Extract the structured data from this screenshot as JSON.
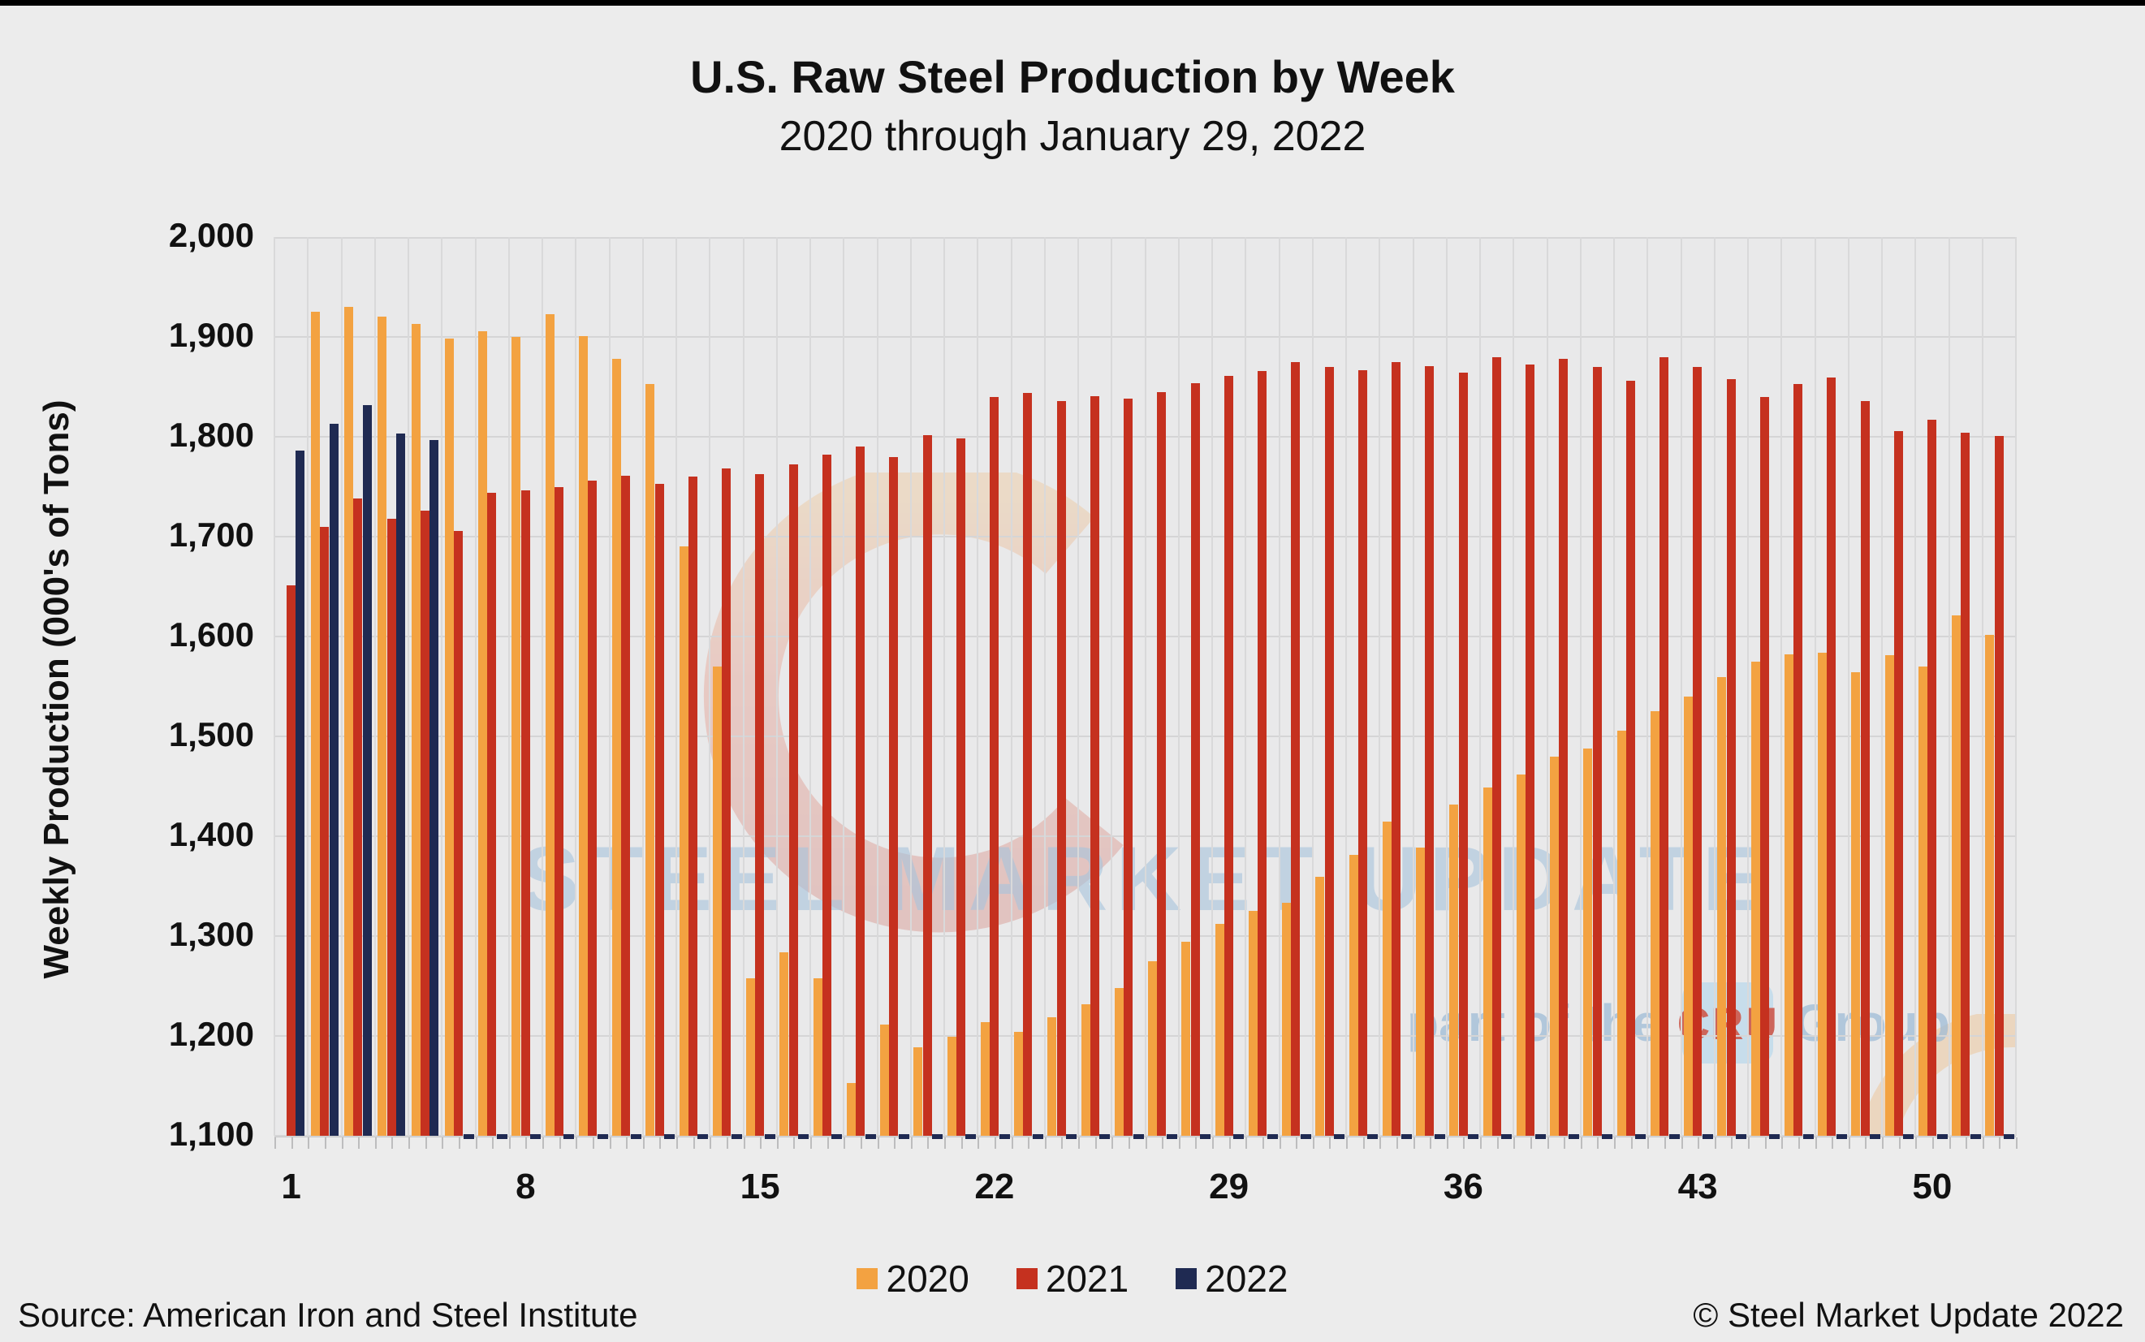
{
  "header": {
    "title": "U.S. Raw Steel Production by Week",
    "subtitle": "2020 through January 29, 2022"
  },
  "footer": {
    "source": "Source: American Iron and Steel Institute",
    "copyright": "© Steel Market Update 2022"
  },
  "watermark": {
    "main": "STEEL MARKET UPDATE",
    "part_of": "part of the",
    "cru": "CRU",
    "group": "Group"
  },
  "chart_data": {
    "type": "bar",
    "title": "U.S. Raw Steel Production by Week",
    "subtitle": "2020 through January 29, 2022",
    "xlabel": "",
    "ylabel": "Weekly Production (000's of Tons)",
    "x": [
      1,
      2,
      3,
      4,
      5,
      6,
      7,
      8,
      9,
      10,
      11,
      12,
      13,
      14,
      15,
      16,
      17,
      18,
      19,
      20,
      21,
      22,
      23,
      24,
      25,
      26,
      27,
      28,
      29,
      30,
      31,
      32,
      33,
      34,
      35,
      36,
      37,
      38,
      39,
      40,
      41,
      42,
      43,
      44,
      45,
      46,
      47,
      48,
      49,
      50,
      51,
      52
    ],
    "xticks": [
      1,
      8,
      15,
      22,
      29,
      36,
      43,
      50
    ],
    "ylim": [
      1100,
      2000
    ],
    "ytick_step": 100,
    "grid": true,
    "legend_position": "bottom",
    "series": [
      {
        "name": "2020",
        "color": "#F3A241",
        "values": [
          null,
          1925,
          1930,
          1920,
          1913,
          1898,
          1906,
          1900,
          1923,
          1901,
          1878,
          1853,
          1690,
          1570,
          1258,
          1284,
          1258,
          1153,
          1211,
          1189,
          1199,
          1214,
          1204,
          1219,
          1232,
          1248,
          1275,
          1294,
          1312,
          1325,
          1333,
          1359,
          1381,
          1415,
          1389,
          1432,
          1449,
          1462,
          1480,
          1488,
          1506,
          1525,
          1540,
          1559,
          1575,
          1582,
          1584,
          1564,
          1581,
          1570,
          1621,
          1602
        ]
      },
      {
        "name": "2021",
        "color": "#C5311F",
        "values": [
          1651,
          1710,
          1738,
          1718,
          1726,
          1706,
          1744,
          1746,
          1750,
          1756,
          1761,
          1753,
          1760,
          1768,
          1763,
          1772,
          1782,
          1790,
          1780,
          1802,
          1798,
          1840,
          1844,
          1836,
          1841,
          1838,
          1845,
          1854,
          1861,
          1866,
          1875,
          1870,
          1867,
          1875,
          1871,
          1864,
          1880,
          1872,
          1878,
          1870,
          1856,
          1880,
          1870,
          1858,
          1840,
          1853,
          1859,
          1836,
          1806,
          1817,
          1804,
          1801
        ]
      },
      {
        "name": "2022",
        "color": "#1F2A52",
        "values": [
          1786,
          1813,
          1832,
          1803,
          1797,
          null,
          null,
          null,
          null,
          null,
          null,
          null,
          null,
          null,
          null,
          null,
          null,
          null,
          null,
          null,
          null,
          null,
          null,
          null,
          null,
          null,
          null,
          null,
          null,
          null,
          null,
          null,
          null,
          null,
          null,
          null,
          null,
          null,
          null,
          null,
          null,
          null,
          null,
          null,
          null,
          null,
          null,
          null,
          null,
          null,
          null,
          null
        ],
        "baseline_dash_for_missing": true
      }
    ]
  }
}
